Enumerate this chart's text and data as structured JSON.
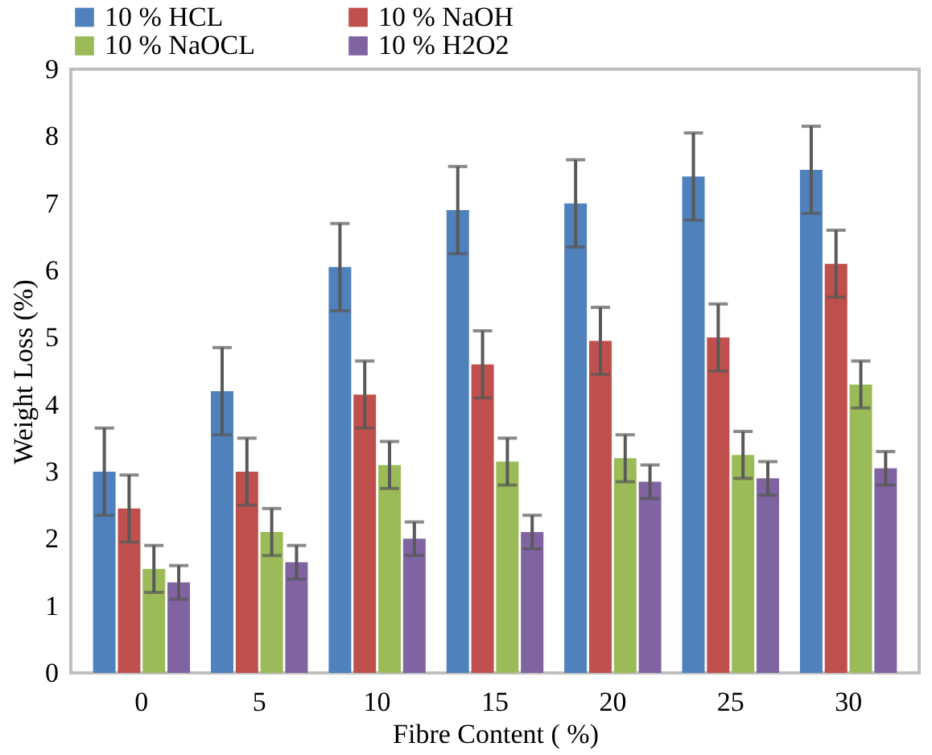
{
  "chart_data": {
    "type": "bar",
    "xlabel": "Fibre Content ( %)",
    "ylabel": "Weight Loss (%)",
    "categories": [
      "0",
      "5",
      "10",
      "15",
      "20",
      "25",
      "30"
    ],
    "series": [
      {
        "name": "10 % HCL",
        "color": "#4f81bd",
        "values": [
          3.0,
          4.2,
          6.05,
          6.9,
          7.0,
          7.4,
          7.5
        ],
        "errors": [
          0.65,
          0.65,
          0.65,
          0.65,
          0.65,
          0.65,
          0.65
        ]
      },
      {
        "name": "10 % NaOH",
        "color": "#c0504d",
        "values": [
          2.45,
          3.0,
          4.15,
          4.6,
          4.95,
          5.0,
          6.1
        ],
        "errors": [
          0.5,
          0.5,
          0.5,
          0.5,
          0.5,
          0.5,
          0.5
        ]
      },
      {
        "name": "10 % NaOCL",
        "color": "#9bbb59",
        "values": [
          1.55,
          2.1,
          3.1,
          3.15,
          3.2,
          3.25,
          4.3
        ],
        "errors": [
          0.35,
          0.35,
          0.35,
          0.35,
          0.35,
          0.35,
          0.35
        ]
      },
      {
        "name": "10 % H2O2",
        "color": "#8064a2",
        "values": [
          1.35,
          1.65,
          2.0,
          2.1,
          2.85,
          2.9,
          3.05
        ],
        "errors": [
          0.25,
          0.25,
          0.25,
          0.25,
          0.25,
          0.25,
          0.25
        ]
      }
    ],
    "ylim": [
      0,
      9
    ],
    "yticks": [
      0,
      1,
      2,
      3,
      4,
      5,
      6,
      7,
      8,
      9
    ],
    "grid": false,
    "legend": "top"
  }
}
